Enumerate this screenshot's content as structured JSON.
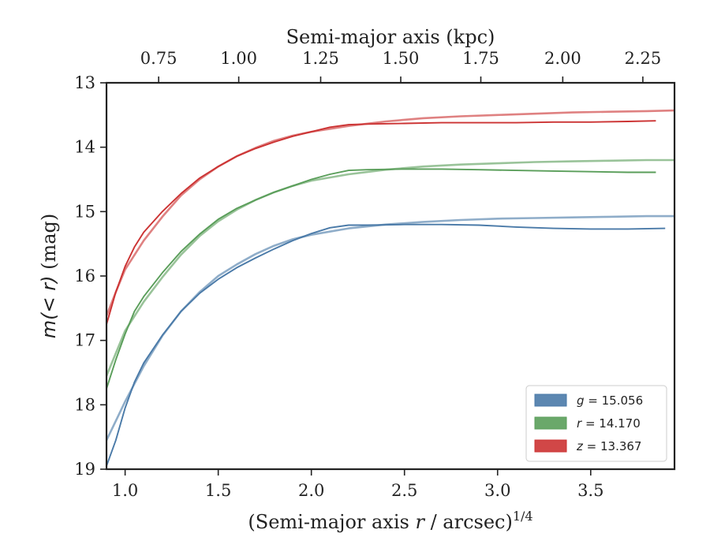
{
  "chart_data": {
    "type": "line",
    "xlabel": "(Semi-major axis r / arcsec)^{1/4}",
    "xlabel_parts": {
      "pre": "(Semi-major axis ",
      "var": "r",
      "post": " / arcsec)",
      "sup": "1/4"
    },
    "ylabel": "m(<r) (mag)",
    "ylabel_parts": {
      "math": "m(< r)",
      "unit": " (mag)"
    },
    "top_xlabel": "Semi-major axis (kpc)",
    "xlim": [
      0.9,
      3.95
    ],
    "ylim": [
      19.0,
      13.0
    ],
    "y_inverted": true,
    "xticks": [
      1.0,
      1.5,
      2.0,
      2.5,
      3.0,
      3.5
    ],
    "xtick_labels": [
      "1.0",
      "1.5",
      "2.0",
      "2.5",
      "3.0",
      "3.5"
    ],
    "yticks": [
      13,
      14,
      15,
      16,
      17,
      18,
      19
    ],
    "ytick_labels": [
      "13",
      "14",
      "15",
      "16",
      "17",
      "18",
      "19"
    ],
    "top_xtick_labels": [
      "0.75",
      "1.00",
      "1.25",
      "1.50",
      "1.75",
      "2.00",
      "2.25"
    ],
    "top_xticks_bottom_units": [
      1.18,
      1.61,
      2.05,
      2.48,
      2.91,
      3.35,
      3.78
    ],
    "legend_position": "lower-right",
    "grid": false,
    "series": [
      {
        "name": "g = 15.056",
        "label_var": "g",
        "label_value": "= 15.056",
        "color": "#4a7aa8",
        "observed": {
          "x": [
            0.9,
            0.95,
            1.0,
            1.05,
            1.1,
            1.2,
            1.3,
            1.4,
            1.5,
            1.6,
            1.7,
            1.8,
            1.9,
            2.0,
            2.1,
            2.2,
            2.3,
            2.5,
            2.7,
            2.9,
            3.1,
            3.3,
            3.5,
            3.7,
            3.9
          ],
          "y": [
            18.95,
            18.55,
            18.05,
            17.65,
            17.35,
            16.92,
            16.55,
            16.27,
            16.05,
            15.87,
            15.72,
            15.58,
            15.45,
            15.34,
            15.25,
            15.21,
            15.21,
            15.2,
            15.2,
            15.21,
            15.24,
            15.26,
            15.27,
            15.27,
            15.26
          ]
        },
        "model": {
          "x": [
            0.9,
            0.95,
            1.0,
            1.1,
            1.2,
            1.3,
            1.4,
            1.5,
            1.6,
            1.7,
            1.8,
            1.9,
            2.0,
            2.2,
            2.4,
            2.6,
            2.8,
            3.0,
            3.2,
            3.4,
            3.6,
            3.8,
            3.95
          ],
          "y": [
            18.55,
            18.25,
            17.95,
            17.4,
            16.93,
            16.55,
            16.25,
            16.0,
            15.82,
            15.66,
            15.53,
            15.43,
            15.36,
            15.26,
            15.2,
            15.16,
            15.13,
            15.11,
            15.1,
            15.09,
            15.08,
            15.07,
            15.07
          ]
        }
      },
      {
        "name": "r = 14.170",
        "label_var": "r",
        "label_value": "= 14.170",
        "color": "#5a9e5a",
        "observed": {
          "x": [
            0.9,
            0.95,
            1.0,
            1.05,
            1.1,
            1.2,
            1.3,
            1.4,
            1.5,
            1.6,
            1.7,
            1.8,
            1.9,
            2.0,
            2.1,
            2.2,
            2.3,
            2.5,
            2.7,
            2.9,
            3.1,
            3.3,
            3.5,
            3.7,
            3.85
          ],
          "y": [
            17.75,
            17.3,
            16.9,
            16.55,
            16.32,
            15.95,
            15.62,
            15.35,
            15.12,
            14.95,
            14.82,
            14.7,
            14.6,
            14.5,
            14.42,
            14.36,
            14.35,
            14.34,
            14.34,
            14.35,
            14.36,
            14.37,
            14.38,
            14.39,
            14.39
          ]
        },
        "model": {
          "x": [
            0.9,
            0.95,
            1.0,
            1.1,
            1.2,
            1.3,
            1.4,
            1.5,
            1.6,
            1.7,
            1.8,
            1.9,
            2.0,
            2.2,
            2.4,
            2.6,
            2.8,
            3.0,
            3.2,
            3.4,
            3.6,
            3.8,
            3.95
          ],
          "y": [
            17.55,
            17.2,
            16.85,
            16.4,
            16.02,
            15.67,
            15.38,
            15.15,
            14.97,
            14.82,
            14.7,
            14.6,
            14.52,
            14.42,
            14.35,
            14.3,
            14.27,
            14.25,
            14.23,
            14.22,
            14.21,
            14.2,
            14.2
          ]
        }
      },
      {
        "name": "z = 13.367",
        "label_var": "z",
        "label_value": "= 13.367",
        "color": "#cc3333",
        "observed": {
          "x": [
            0.9,
            0.95,
            1.0,
            1.05,
            1.1,
            1.2,
            1.3,
            1.4,
            1.5,
            1.6,
            1.7,
            1.8,
            1.9,
            2.0,
            2.1,
            2.2,
            2.3,
            2.5,
            2.7,
            2.9,
            3.1,
            3.3,
            3.5,
            3.7,
            3.85
          ],
          "y": [
            16.75,
            16.25,
            15.85,
            15.55,
            15.32,
            15.0,
            14.72,
            14.48,
            14.3,
            14.14,
            14.02,
            13.92,
            13.83,
            13.76,
            13.69,
            13.65,
            13.64,
            13.63,
            13.62,
            13.62,
            13.62,
            13.61,
            13.61,
            13.6,
            13.59
          ]
        },
        "model": {
          "x": [
            0.9,
            0.95,
            1.0,
            1.1,
            1.2,
            1.3,
            1.4,
            1.5,
            1.6,
            1.7,
            1.8,
            1.9,
            2.0,
            2.2,
            2.4,
            2.6,
            2.8,
            3.0,
            3.2,
            3.4,
            3.6,
            3.8,
            3.95
          ],
          "y": [
            16.62,
            16.25,
            15.9,
            15.45,
            15.08,
            14.75,
            14.5,
            14.3,
            14.14,
            14.01,
            13.9,
            13.82,
            13.76,
            13.67,
            13.6,
            13.55,
            13.52,
            13.5,
            13.48,
            13.46,
            13.45,
            13.44,
            13.43
          ]
        }
      }
    ]
  }
}
